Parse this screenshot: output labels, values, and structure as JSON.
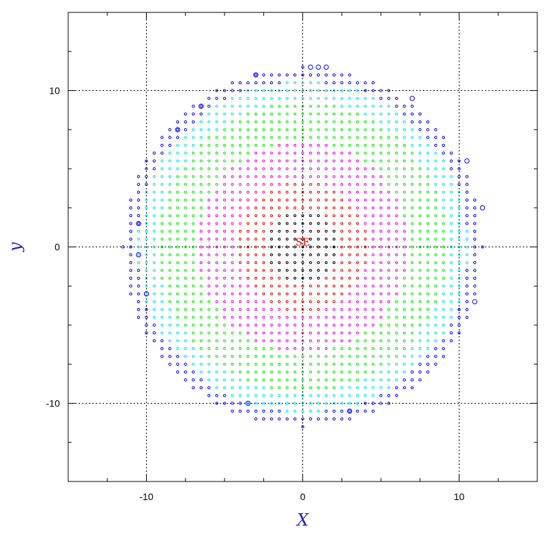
{
  "colors": {
    "frame": "#000000",
    "grid": "#000000",
    "axis_title": "#2323c8",
    "marker_label": "#ff0000",
    "ring_blue": "#0000ff",
    "ring_cyan": "#00e5ee",
    "ring_green": "#00ee00",
    "ring_magenta": "#ee00ee",
    "ring_red": "#ee0000",
    "ring_black": "#000000"
  },
  "chart_data": {
    "type": "scatter",
    "title": "",
    "xlabel": "X",
    "ylabel": "y",
    "xlim": [
      -15,
      15
    ],
    "ylim": [
      -15,
      15
    ],
    "xticks": [
      -10,
      0,
      10
    ],
    "yticks": [
      -10,
      0,
      10
    ],
    "xtick_labels": [
      "-10",
      "0",
      "10"
    ],
    "ytick_labels": [
      "-10",
      "0",
      "10"
    ],
    "grid": true,
    "grid_lines_x": [
      -10,
      0,
      10
    ],
    "grid_lines_y": [
      -10,
      0,
      10
    ],
    "marker_label": {
      "text": "SE",
      "x": 0,
      "y": 0.3
    },
    "point_grid": {
      "spacing": 0.5,
      "radius_limit": 11.5
    },
    "series": [
      {
        "color_key": "ring_black",
        "r_min": 0,
        "r_max": 2.3
      },
      {
        "color_key": "ring_red",
        "r_min": 2.3,
        "r_max": 4.2
      },
      {
        "color_key": "ring_magenta",
        "r_min": 4.2,
        "r_max": 6.8
      },
      {
        "color_key": "ring_green",
        "r_min": 6.8,
        "r_max": 9.3
      },
      {
        "color_key": "ring_cyan",
        "r_min": 9.3,
        "r_max": 10.6
      },
      {
        "color_key": "ring_blue",
        "r_min": 10.6,
        "r_max": 11.6
      }
    ],
    "highlight_points": [
      {
        "x": -3,
        "y": 11
      },
      {
        "x": 1,
        "y": 11.5
      },
      {
        "x": 7,
        "y": 9.5
      },
      {
        "x": -6.5,
        "y": 9
      },
      {
        "x": -8,
        "y": 7.5
      },
      {
        "x": 10.5,
        "y": 5.5
      },
      {
        "x": 11.5,
        "y": 2.5
      },
      {
        "x": -10.5,
        "y": 1.5
      },
      {
        "x": -10.5,
        "y": -0.5
      },
      {
        "x": -10,
        "y": -3
      },
      {
        "x": 11,
        "y": -3.5
      },
      {
        "x": -3.5,
        "y": -10
      },
      {
        "x": 3,
        "y": -10.5
      },
      {
        "x": 1.5,
        "y": 11.5
      },
      {
        "x": 0.5,
        "y": 11.5
      }
    ]
  }
}
